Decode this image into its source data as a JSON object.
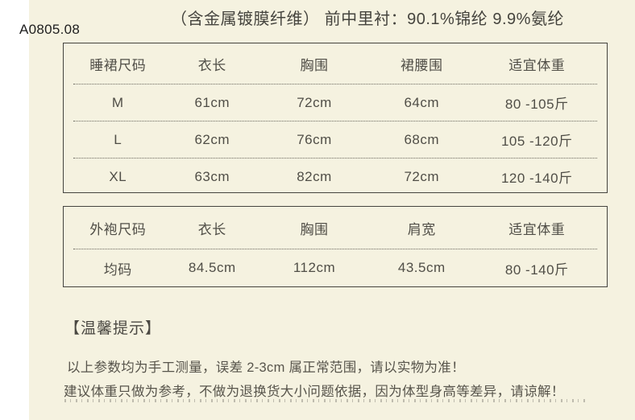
{
  "page": {
    "code": "A0805.08",
    "title": "（含金属镀膜纤维） 前中里衬：90.1%锦纶 9.9%氨纶"
  },
  "tables": [
    {
      "name": "睡裙尺码表",
      "headers": [
        "睡裙尺码",
        "衣长",
        "胸围",
        "裙腰围",
        "适宜体重"
      ],
      "rows": [
        [
          "M",
          "61cm",
          "72cm",
          "64cm",
          "80 -105斤"
        ],
        [
          "L",
          "62cm",
          "76cm",
          "68cm",
          "105 -120斤"
        ],
        [
          "XL",
          "63cm",
          "82cm",
          "72cm",
          "120 -140斤"
        ]
      ]
    },
    {
      "name": "外袍尺码表",
      "headers": [
        "外袍尺码",
        "衣长",
        "胸围",
        "肩宽",
        "适宜体重"
      ],
      "rows": [
        [
          "均码",
          "84.5cm",
          "112cm",
          "43.5cm",
          "80 -140斤"
        ]
      ]
    }
  ],
  "tips": {
    "heading": "【温馨提示】",
    "lines": [
      "以上参数均为手工测量，误差 2-3cm 属正常范围，请以实物为准！",
      "建议体重只做为参考，不做为退换货大小问题依据，因为体型身高等差异，请谅解！"
    ]
  },
  "colors": {
    "background": "#f5f2e0",
    "side_strip": "#ffffff",
    "table_border": "#45443f",
    "dotted_separator": "#6b6960",
    "text": "#4f4d46",
    "code_text": "#1e1e1e"
  }
}
